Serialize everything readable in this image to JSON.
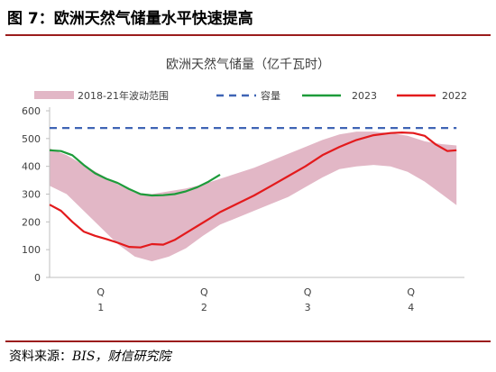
{
  "figure": {
    "label": "图 7：欧洲天然气储量水平快速提高",
    "source_prefix": "资料来源：",
    "source_text": "BIS，财信研究院"
  },
  "colors": {
    "band": "#e2b7c6",
    "capacity": "#3f64b5",
    "y2023": "#1d9b3a",
    "y2022": "#e31a1c",
    "rule": "#9b1c1c",
    "axis": "#bfbfbf"
  },
  "chart_data": {
    "type": "line",
    "title": "欧洲天然气储量（亿千瓦时）",
    "ylim": [
      0,
      600
    ],
    "yticks": [
      "0",
      "100",
      "200",
      "300",
      "400",
      "500",
      "600"
    ],
    "xlim": [
      0,
      365
    ],
    "xticks": [
      {
        "x": 45,
        "label": [
          "Q",
          "1"
        ]
      },
      {
        "x": 136,
        "label": [
          "Q",
          "2"
        ]
      },
      {
        "x": 227,
        "label": [
          "Q",
          "3"
        ]
      },
      {
        "x": 318,
        "label": [
          "Q",
          "4"
        ]
      }
    ],
    "grid": false,
    "legend_position": "top",
    "legend": {
      "band": "2018-21年波动范围",
      "capacity": "容量",
      "y2023": "2023",
      "y2022": "2022"
    },
    "band": {
      "name": "2018-21年波动范围",
      "x": [
        0,
        15,
        30,
        45,
        60,
        75,
        90,
        105,
        120,
        135,
        150,
        165,
        180,
        195,
        210,
        225,
        240,
        255,
        270,
        285,
        300,
        315,
        330,
        345,
        358
      ],
      "upper": [
        465,
        440,
        405,
        370,
        335,
        305,
        300,
        310,
        320,
        335,
        355,
        375,
        395,
        420,
        445,
        470,
        495,
        515,
        525,
        525,
        520,
        510,
        490,
        480,
        475
      ],
      "lower": [
        330,
        300,
        240,
        180,
        120,
        75,
        58,
        75,
        105,
        150,
        190,
        215,
        240,
        265,
        290,
        325,
        360,
        390,
        400,
        405,
        400,
        380,
        345,
        300,
        260
      ]
    },
    "series": [
      {
        "name": "容量",
        "key": "capacity",
        "x": [
          0,
          358
        ],
        "values": [
          538,
          538
        ]
      },
      {
        "name": "2023",
        "key": "y2023",
        "x": [
          0,
          10,
          20,
          30,
          40,
          50,
          60,
          70,
          80,
          90,
          100,
          110,
          120,
          130,
          140,
          150
        ],
        "values": [
          458,
          455,
          440,
          405,
          375,
          355,
          340,
          318,
          300,
          295,
          296,
          300,
          310,
          325,
          345,
          370
        ]
      },
      {
        "name": "2022",
        "key": "y2022",
        "x": [
          0,
          10,
          20,
          30,
          40,
          50,
          60,
          70,
          80,
          90,
          100,
          110,
          120,
          130,
          140,
          150,
          165,
          180,
          195,
          210,
          225,
          240,
          255,
          270,
          285,
          300,
          310,
          320,
          330,
          340,
          350,
          358
        ],
        "values": [
          262,
          240,
          200,
          165,
          150,
          138,
          125,
          110,
          108,
          120,
          118,
          135,
          160,
          185,
          210,
          235,
          265,
          295,
          330,
          365,
          400,
          440,
          470,
          495,
          512,
          520,
          522,
          520,
          510,
          478,
          455,
          458
        ]
      }
    ]
  }
}
